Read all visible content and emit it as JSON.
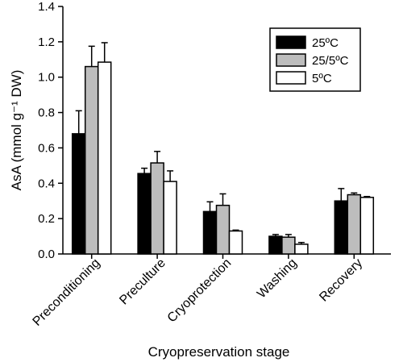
{
  "chart_data": {
    "type": "bar",
    "xlabel": "Cryopreservation stage",
    "ylabel": "AsA (mmol g⁻¹ DW)",
    "ylim": [
      0,
      1.4
    ],
    "yticks": [
      "0.0",
      "0.2",
      "0.4",
      "0.6",
      "0.8",
      "1.0",
      "1.2",
      "1.4"
    ],
    "categories": [
      "Preconditioning",
      "Preculture",
      "Cryoprotection",
      "Washing",
      "Recovery"
    ],
    "series": [
      {
        "name": "25ºC",
        "color": "#000000",
        "values": [
          0.68,
          0.455,
          0.24,
          0.1,
          0.3
        ],
        "errors": [
          0.13,
          0.03,
          0.055,
          0.01,
          0.07
        ]
      },
      {
        "name": "25/5ºC",
        "color": "#bdbdbd",
        "values": [
          1.06,
          0.515,
          0.275,
          0.095,
          0.335
        ],
        "errors": [
          0.115,
          0.065,
          0.065,
          0.015,
          0.01
        ]
      },
      {
        "name": "5ºC",
        "color": "#ffffff",
        "values": [
          1.085,
          0.41,
          0.13,
          0.055,
          0.32
        ],
        "errors": [
          0.11,
          0.06,
          0.005,
          0.01,
          0.005
        ]
      }
    ],
    "legend_position": "top-right",
    "grid": false
  }
}
